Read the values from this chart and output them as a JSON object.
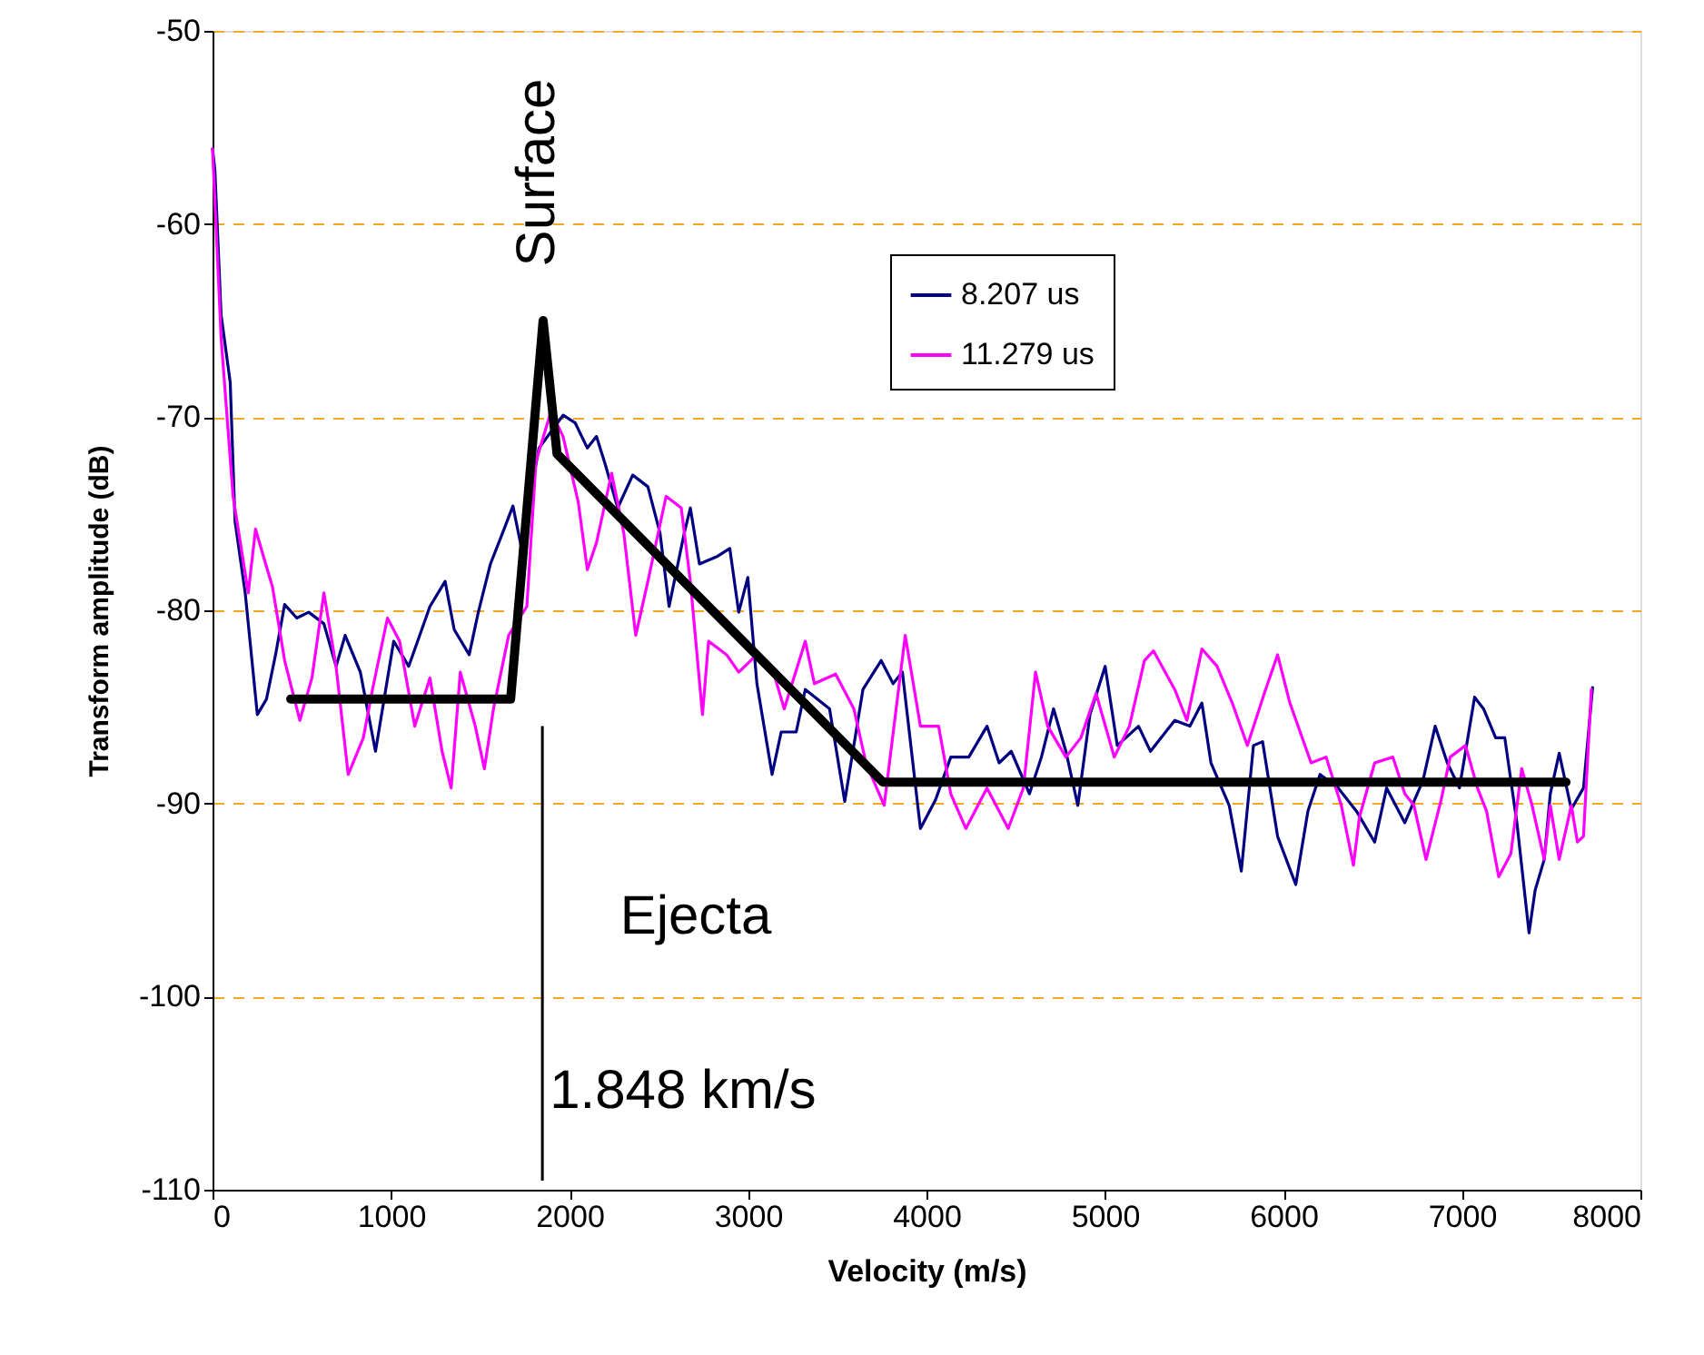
{
  "chart_data": {
    "type": "line",
    "xlabel": "Velocity (m/s)",
    "ylabel": "Transform amplitude (dB)",
    "xlim": [
      0,
      8000
    ],
    "xticks": [
      0,
      1000,
      2000,
      3000,
      4000,
      5000,
      6000,
      7000,
      8000
    ],
    "ylim": [
      -110,
      -50
    ],
    "yticks": [
      -110,
      -100,
      -90,
      -80,
      -70,
      -60,
      -50
    ],
    "grid": "y",
    "legend": "top right",
    "marker": "none",
    "line_style": "solid",
    "series": [
      {
        "name": "8.207 us",
        "color": "#000080",
        "x": [
          0,
          13,
          48,
          99,
          126,
          183,
          251,
          302,
          353,
          404,
          472,
          539,
          624,
          692,
          743,
          828,
          913,
          1015,
          1099,
          1218,
          1303,
          1354,
          1438,
          1489,
          1557,
          1625,
          1683,
          1727,
          1829,
          1964,
          2032,
          2100,
          2151,
          2202,
          2270,
          2354,
          2439,
          2507,
          2558,
          2643,
          2677,
          2728,
          2830,
          2898,
          2948,
          2999,
          3050,
          3135,
          3186,
          3270,
          3321,
          3457,
          3542,
          3644,
          3746,
          3813,
          3865,
          3966,
          4051,
          4136,
          4237,
          4339,
          4407,
          4475,
          4577,
          4644,
          4712,
          4781,
          4848,
          4916,
          5001,
          5069,
          5188,
          5255,
          5391,
          5476,
          5543,
          5594,
          5696,
          5764,
          5832,
          5883,
          5967,
          6069,
          6137,
          6205,
          6307,
          6409,
          6511,
          6578,
          6680,
          6782,
          6850,
          6918,
          6986,
          7071,
          7121,
          7189,
          7240,
          7308,
          7376,
          7410,
          7461,
          7495,
          7545,
          7613,
          7681,
          7732
        ],
        "values": [
          -56.1,
          -57.2,
          -64.7,
          -68.2,
          -75.4,
          -79.1,
          -85.4,
          -84.6,
          -82.3,
          -79.7,
          -80.4,
          -80.1,
          -80.7,
          -82.9,
          -81.3,
          -83.2,
          -87.3,
          -81.6,
          -82.9,
          -79.8,
          -78.5,
          -81.0,
          -82.3,
          -80.1,
          -77.6,
          -76.0,
          -74.6,
          -76.6,
          -71.6,
          -69.9,
          -70.3,
          -71.6,
          -71.0,
          -72.5,
          -74.7,
          -73.0,
          -73.6,
          -76.0,
          -79.8,
          -76.0,
          -74.7,
          -77.6,
          -77.2,
          -76.8,
          -80.1,
          -78.3,
          -83.8,
          -88.5,
          -86.3,
          -86.3,
          -84.1,
          -85.1,
          -89.9,
          -84.1,
          -82.6,
          -83.8,
          -83.2,
          -91.3,
          -89.8,
          -87.6,
          -87.6,
          -86.0,
          -87.9,
          -87.3,
          -89.5,
          -87.6,
          -85.1,
          -87.3,
          -90.1,
          -85.4,
          -82.9,
          -87.0,
          -86.0,
          -87.3,
          -85.7,
          -86.0,
          -84.8,
          -87.9,
          -90.1,
          -93.5,
          -87.0,
          -86.8,
          -91.7,
          -94.2,
          -90.4,
          -88.5,
          -89.2,
          -90.4,
          -92.0,
          -89.2,
          -91.0,
          -88.8,
          -86.0,
          -87.9,
          -89.2,
          -84.5,
          -85.1,
          -86.6,
          -86.6,
          -91.0,
          -96.7,
          -94.5,
          -92.9,
          -89.5,
          -87.4,
          -90.3,
          -89.2,
          -84.0
        ]
      },
      {
        "name": "11.279 us",
        "color": "#ff00ff",
        "x": [
          0,
          48,
          115,
          200,
          241,
          285,
          336,
          404,
          489,
          557,
          624,
          692,
          760,
          845,
          896,
          980,
          1048,
          1133,
          1218,
          1286,
          1337,
          1388,
          1472,
          1523,
          1574,
          1659,
          1761,
          1812,
          1896,
          1964,
          2049,
          2100,
          2151,
          2236,
          2304,
          2371,
          2439,
          2541,
          2626,
          2677,
          2745,
          2779,
          2880,
          2948,
          3050,
          3152,
          3203,
          3321,
          3372,
          3491,
          3593,
          3661,
          3763,
          3881,
          3966,
          4068,
          4136,
          4221,
          4339,
          4458,
          4543,
          4611,
          4679,
          4781,
          4865,
          4950,
          5052,
          5137,
          5221,
          5272,
          5391,
          5459,
          5543,
          5628,
          5713,
          5798,
          5900,
          5967,
          6036,
          6155,
          6239,
          6324,
          6392,
          6426,
          6511,
          6613,
          6680,
          6731,
          6799,
          6884,
          6934,
          7020,
          7087,
          7138,
          7206,
          7274,
          7335,
          7393,
          7461,
          7495,
          7545,
          7613,
          7647,
          7681,
          7725
        ],
        "values": [
          -56.1,
          -65.9,
          -74.1,
          -79.1,
          -75.8,
          -77.2,
          -78.8,
          -82.6,
          -85.7,
          -83.5,
          -79.1,
          -82.9,
          -88.5,
          -86.6,
          -84.1,
          -80.4,
          -81.6,
          -86.0,
          -83.5,
          -87.3,
          -89.2,
          -83.2,
          -86.0,
          -88.2,
          -85.1,
          -81.3,
          -79.8,
          -72.3,
          -69.7,
          -71.0,
          -74.4,
          -77.9,
          -76.5,
          -72.9,
          -76.0,
          -81.3,
          -78.5,
          -74.1,
          -74.7,
          -78.5,
          -85.4,
          -81.6,
          -82.3,
          -83.2,
          -82.3,
          -83.5,
          -85.1,
          -81.6,
          -83.8,
          -83.3,
          -85.1,
          -87.9,
          -90.1,
          -81.3,
          -86.0,
          -86.0,
          -89.5,
          -91.3,
          -89.2,
          -91.3,
          -89.2,
          -83.2,
          -86.0,
          -87.6,
          -86.6,
          -84.3,
          -87.6,
          -86.0,
          -82.6,
          -82.1,
          -84.1,
          -85.7,
          -82.0,
          -82.9,
          -84.8,
          -87.0,
          -84.1,
          -82.3,
          -84.8,
          -87.9,
          -87.6,
          -90.1,
          -93.2,
          -90.7,
          -87.9,
          -87.6,
          -89.5,
          -90.1,
          -92.9,
          -89.8,
          -87.6,
          -87.0,
          -89.2,
          -90.4,
          -93.8,
          -92.6,
          -88.2,
          -90.1,
          -92.9,
          -90.1,
          -92.9,
          -90.1,
          -92.0,
          -91.7,
          -84.1
        ]
      },
      {
        "type": "line",
        "color": "#000000",
        "x": [
          438,
          1670,
          1852,
          1930,
          3756,
          7583
        ],
        "values": [
          -84.6,
          -84.6,
          -65.0,
          -71.9,
          -88.9,
          -88.9
        ]
      }
    ],
    "ref_lines": [
      {
        "axis": "x",
        "value": 1848,
        "label": "1.848 km/s",
        "color": "#000000"
      }
    ],
    "annotations": [
      "Surface",
      "Ejecta"
    ]
  }
}
